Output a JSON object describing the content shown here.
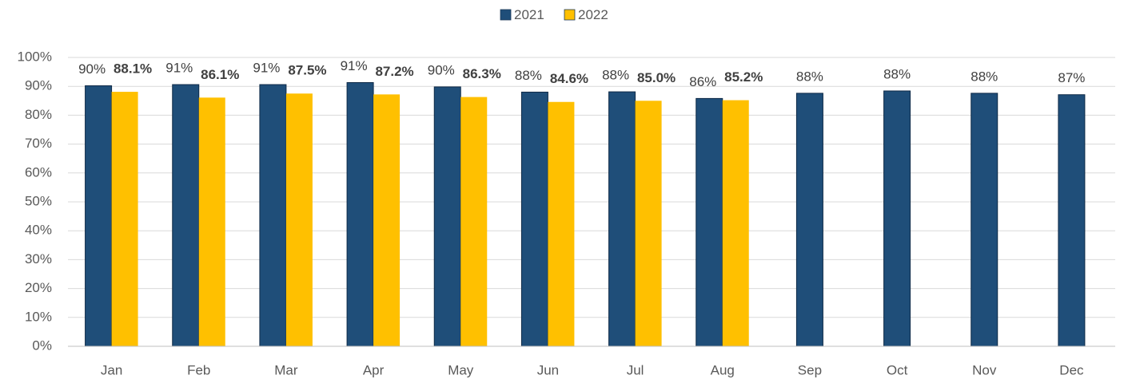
{
  "chart_data": {
    "type": "bar",
    "categories": [
      "Jan",
      "Feb",
      "Mar",
      "Apr",
      "May",
      "Jun",
      "Jul",
      "Aug",
      "Sep",
      "Oct",
      "Nov",
      "Dec"
    ],
    "series": [
      {
        "name": "2021",
        "color": "#1f4e79",
        "values": [
          90.2,
          90.6,
          90.6,
          91.3,
          89.8,
          88.0,
          88.1,
          85.8,
          87.6,
          88.4,
          87.6,
          87.1
        ],
        "value_labels": [
          "90%",
          "91%",
          "91%",
          "91%",
          "90%",
          "88%",
          "88%",
          "86%",
          "88%",
          "88%",
          "88%",
          "87%"
        ]
      },
      {
        "name": "2022",
        "color": "#ffc000",
        "values": [
          88.1,
          86.1,
          87.5,
          87.2,
          86.3,
          84.6,
          85.0,
          85.2,
          null,
          null,
          null,
          null
        ],
        "value_labels": [
          "88.1%",
          "86.1%",
          "87.5%",
          "87.2%",
          "86.3%",
          "84.6%",
          "85.0%",
          "85.2%",
          null,
          null,
          null,
          null
        ]
      }
    ],
    "ylim": [
      0,
      100
    ],
    "yticks": [
      {
        "value": 0,
        "label": "0%"
      },
      {
        "value": 10,
        "label": "10%"
      },
      {
        "value": 20,
        "label": "20%"
      },
      {
        "value": 30,
        "label": "30%"
      },
      {
        "value": 40,
        "label": "40%"
      },
      {
        "value": 50,
        "label": "50%"
      },
      {
        "value": 60,
        "label": "60%"
      },
      {
        "value": 70,
        "label": "70%"
      },
      {
        "value": 80,
        "label": "80%"
      },
      {
        "value": 90,
        "label": "90%"
      },
      {
        "value": 100,
        "label": "100%"
      }
    ],
    "grid": true,
    "legend": "top"
  }
}
